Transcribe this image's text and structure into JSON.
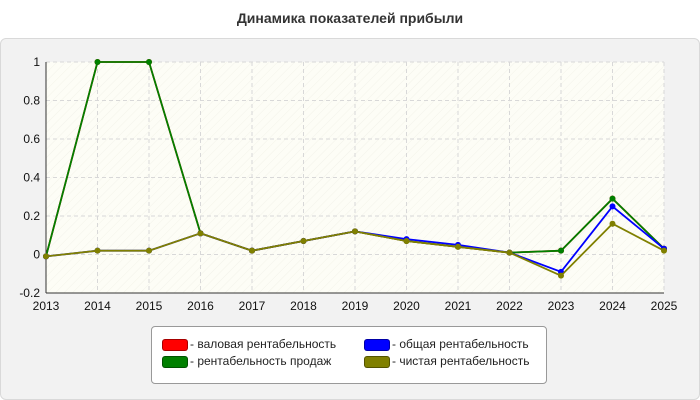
{
  "chart_data": {
    "type": "line",
    "title": "Динамика показателей прибыли",
    "xlabel": "",
    "ylabel": "",
    "x": [
      "2013",
      "2014",
      "2015",
      "2016",
      "2017",
      "2018",
      "2019",
      "2020",
      "2021",
      "2022",
      "2023",
      "2024",
      "2025"
    ],
    "ylim": [
      -0.2,
      1
    ],
    "yticks": [
      "-0.2",
      "0",
      "0.2",
      "0.4",
      "0.6",
      "0.8",
      "1"
    ],
    "grid": true,
    "legend_position": "bottom",
    "series": [
      {
        "name": "- валовая рентабельность",
        "color": "#ff0000",
        "values": [
          -0.01,
          1,
          1,
          0.11,
          0.02,
          0.07,
          0.12,
          0.07,
          0.04,
          0.01,
          0.02,
          0.29,
          0.03
        ]
      },
      {
        "name": "- рентабельность продаж",
        "color": "#008000",
        "values": [
          -0.01,
          1,
          1,
          0.11,
          0.02,
          0.07,
          0.12,
          0.07,
          0.04,
          0.01,
          0.02,
          0.29,
          0.03
        ]
      },
      {
        "name": "- общая рентабельность",
        "color": "#0000ff",
        "values": [
          -0.01,
          0.02,
          0.02,
          0.11,
          0.02,
          0.07,
          0.12,
          0.08,
          0.05,
          0.01,
          -0.09,
          0.25,
          0.03
        ]
      },
      {
        "name": "- чистая рентабельность",
        "color": "#808000",
        "values": [
          -0.01,
          0.02,
          0.02,
          0.11,
          0.02,
          0.07,
          0.12,
          0.07,
          0.04,
          0.01,
          -0.11,
          0.16,
          0.02
        ]
      }
    ]
  }
}
